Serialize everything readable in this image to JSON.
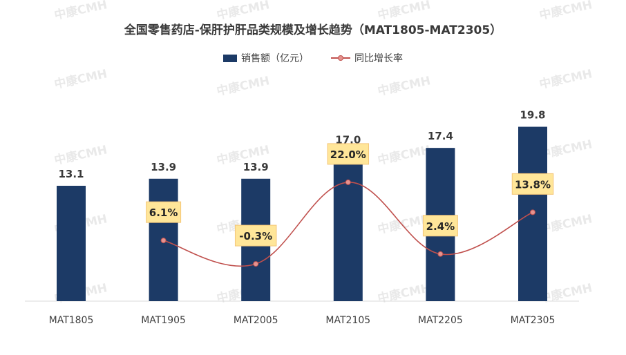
{
  "chart_data": {
    "type": "bar",
    "title": "全国零售药店-保肝护肝品类规模及增长趋势（MAT1805-MAT2305）",
    "categories": [
      "MAT1805",
      "MAT1905",
      "MAT2005",
      "MAT2105",
      "MAT2205",
      "MAT2305"
    ],
    "series": [
      {
        "name": "销售额（亿元）",
        "type": "bar",
        "color": "#1c3a66",
        "values": [
          13.1,
          13.9,
          13.9,
          17.0,
          17.4,
          19.8
        ],
        "labels": [
          "13.1",
          "13.9",
          "13.9",
          "17.0",
          "17.4",
          "19.8"
        ]
      },
      {
        "name": "同比增长率",
        "type": "line",
        "color": "#c0504d",
        "values": [
          null,
          6.1,
          -0.3,
          22.0,
          2.4,
          13.8
        ],
        "labels": [
          "",
          "6.1%",
          "-0.3%",
          "22.0%",
          "2.4%",
          "13.8%"
        ]
      }
    ],
    "ylim_bar": [
      0,
      20
    ],
    "ylim_rate": [
      -15,
      40
    ],
    "grid": false,
    "legend_position": "top"
  },
  "watermark": "中康CMH"
}
